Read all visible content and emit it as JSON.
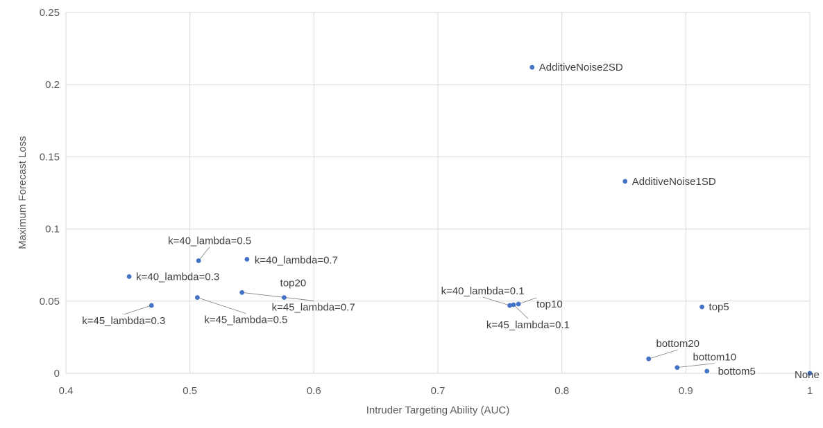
{
  "chart_data": {
    "type": "scatter",
    "xlabel": "Intruder Targeting Ability (AUC)",
    "ylabel": "Maximum Forecast Loss",
    "xlim": [
      0.4,
      1.0
    ],
    "ylim": [
      0,
      0.25
    ],
    "x_ticks": [
      "0.4",
      "0.5",
      "0.6",
      "0.7",
      "0.8",
      "0.9",
      "1"
    ],
    "y_ticks": [
      "0",
      "0.05",
      "0.1",
      "0.15",
      "0.2",
      "0.25"
    ],
    "grid": true,
    "marker_color": "#4472c4",
    "points": [
      {
        "label": "AdditiveNoise2SD",
        "x": 0.776,
        "y": 0.212
      },
      {
        "label": "AdditiveNoise1SD",
        "x": 0.851,
        "y": 0.133
      },
      {
        "label": "k=40_lambda=0.5",
        "x": 0.507,
        "y": 0.078
      },
      {
        "label": "k=40_lambda=0.7",
        "x": 0.546,
        "y": 0.079
      },
      {
        "label": "k=40_lambda=0.3",
        "x": 0.451,
        "y": 0.067
      },
      {
        "label": "k=45_lambda=0.3",
        "x": 0.469,
        "y": 0.047
      },
      {
        "label": "k=45_lambda=0.5",
        "x": 0.506,
        "y": 0.0525
      },
      {
        "label": "k=45_lambda=0.7",
        "x": 0.542,
        "y": 0.056
      },
      {
        "label": "top20",
        "x": 0.576,
        "y": 0.0525
      },
      {
        "label": "k=40_lambda=0.1",
        "x": 0.758,
        "y": 0.047
      },
      {
        "label": "k=45_lambda=0.1",
        "x": 0.761,
        "y": 0.0475
      },
      {
        "label": "top10",
        "x": 0.765,
        "y": 0.048
      },
      {
        "label": "top5",
        "x": 0.913,
        "y": 0.046
      },
      {
        "label": "bottom20",
        "x": 0.87,
        "y": 0.01
      },
      {
        "label": "bottom10",
        "x": 0.893,
        "y": 0.004
      },
      {
        "label": "bottom5",
        "x": 0.917,
        "y": 0.0015
      },
      {
        "label": "None",
        "x": 1.0,
        "y": 0.0
      }
    ]
  }
}
